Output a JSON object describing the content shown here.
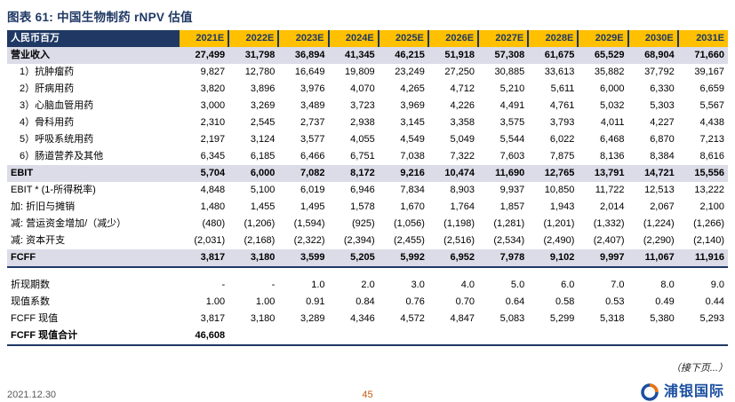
{
  "title": "图表 61: 中国生物制药 rNPV 估值",
  "table": {
    "header": [
      "人民币百万",
      "2021E",
      "2022E",
      "2023E",
      "2024E",
      "2025E",
      "2026E",
      "2027E",
      "2028E",
      "2029E",
      "2030E",
      "2031E"
    ],
    "rows": [
      {
        "label": "营业收入",
        "style": "hl",
        "values": [
          "27,499",
          "31,798",
          "36,894",
          "41,345",
          "46,215",
          "51,918",
          "57,308",
          "61,675",
          "65,529",
          "68,904",
          "71,660"
        ]
      },
      {
        "label": "1）抗肿瘤药",
        "style": "indent",
        "values": [
          "9,827",
          "12,780",
          "16,649",
          "19,809",
          "23,249",
          "27,250",
          "30,885",
          "33,613",
          "35,882",
          "37,792",
          "39,167"
        ]
      },
      {
        "label": "2）肝病用药",
        "style": "indent",
        "values": [
          "3,820",
          "3,896",
          "3,976",
          "4,070",
          "4,265",
          "4,712",
          "5,210",
          "5,611",
          "6,000",
          "6,330",
          "6,659"
        ]
      },
      {
        "label": "3）心脑血管用药",
        "style": "indent",
        "values": [
          "3,000",
          "3,269",
          "3,489",
          "3,723",
          "3,969",
          "4,226",
          "4,491",
          "4,761",
          "5,032",
          "5,303",
          "5,567"
        ]
      },
      {
        "label": "4）骨科用药",
        "style": "indent",
        "values": [
          "2,310",
          "2,545",
          "2,737",
          "2,938",
          "3,145",
          "3,358",
          "3,575",
          "3,793",
          "4,011",
          "4,227",
          "4,438"
        ]
      },
      {
        "label": "5）呼吸系统用药",
        "style": "indent",
        "values": [
          "2,197",
          "3,124",
          "3,577",
          "4,055",
          "4,549",
          "5,049",
          "5,544",
          "6,022",
          "6,468",
          "6,870",
          "7,213"
        ]
      },
      {
        "label": "6）肠道营养及其他",
        "style": "indent",
        "values": [
          "6,345",
          "6,185",
          "6,466",
          "6,751",
          "7,038",
          "7,322",
          "7,603",
          "7,875",
          "8,136",
          "8,384",
          "8,616"
        ]
      },
      {
        "label": "EBIT",
        "style": "hl",
        "values": [
          "5,704",
          "6,000",
          "7,082",
          "8,172",
          "9,216",
          "10,474",
          "11,690",
          "12,765",
          "13,791",
          "14,721",
          "15,556"
        ]
      },
      {
        "label": "EBIT * (1-所得税率)",
        "style": "",
        "values": [
          "4,848",
          "5,100",
          "6,019",
          "6,946",
          "7,834",
          "8,903",
          "9,937",
          "10,850",
          "11,722",
          "12,513",
          "13,222"
        ]
      },
      {
        "label": "加: 折旧与摊销",
        "style": "",
        "values": [
          "1,480",
          "1,455",
          "1,495",
          "1,578",
          "1,670",
          "1,764",
          "1,857",
          "1,943",
          "2,014",
          "2,067",
          "2,100"
        ]
      },
      {
        "label": "减: 营运资金增加/（减少）",
        "style": "",
        "values": [
          "(480)",
          "(1,206)",
          "(1,594)",
          "(925)",
          "(1,056)",
          "(1,198)",
          "(1,281)",
          "(1,201)",
          "(1,332)",
          "(1,224)",
          "(1,266)"
        ]
      },
      {
        "label": "减: 资本开支",
        "style": "",
        "values": [
          "(2,031)",
          "(2,168)",
          "(2,322)",
          "(2,394)",
          "(2,455)",
          "(2,516)",
          "(2,534)",
          "(2,490)",
          "(2,407)",
          "(2,290)",
          "(2,140)"
        ]
      },
      {
        "label": "FCFF",
        "style": "hl bb",
        "values": [
          "3,817",
          "3,180",
          "3,599",
          "5,205",
          "5,992",
          "6,952",
          "7,978",
          "9,102",
          "9,997",
          "11,067",
          "11,916"
        ]
      },
      {
        "label": "",
        "style": "spacer",
        "values": [
          "",
          "",
          "",
          "",
          "",
          "",
          "",
          "",
          "",
          "",
          ""
        ]
      },
      {
        "label": "折现期数",
        "style": "",
        "values": [
          "-",
          "-",
          "1.0",
          "2.0",
          "3.0",
          "4.0",
          "5.0",
          "6.0",
          "7.0",
          "8.0",
          "9.0"
        ]
      },
      {
        "label": "现值系数",
        "style": "",
        "values": [
          "1.00",
          "1.00",
          "0.91",
          "0.84",
          "0.76",
          "0.70",
          "0.64",
          "0.58",
          "0.53",
          "0.49",
          "0.44"
        ]
      },
      {
        "label": "FCFF 现值",
        "style": "",
        "values": [
          "3,817",
          "3,180",
          "3,289",
          "4,346",
          "4,572",
          "4,847",
          "5,083",
          "5,299",
          "5,318",
          "5,380",
          "5,293"
        ]
      },
      {
        "label": "FCFF 现值合计",
        "style": "total bb",
        "values": [
          "46,608",
          "",
          "",
          "",
          "",
          "",
          "",
          "",
          "",
          "",
          ""
        ]
      }
    ]
  },
  "footer": {
    "continued": "（接下页...）",
    "date": "2021.12.30",
    "page": "45",
    "brand": "浦银国际"
  },
  "colors": {
    "header_navy": "#1F3864",
    "year_gold": "#FFC000",
    "row_highlight": "#DBDCE8",
    "page_number_orange": "#C45911",
    "brand_blue": "#1B4FA0",
    "brand_orange": "#E87511"
  }
}
